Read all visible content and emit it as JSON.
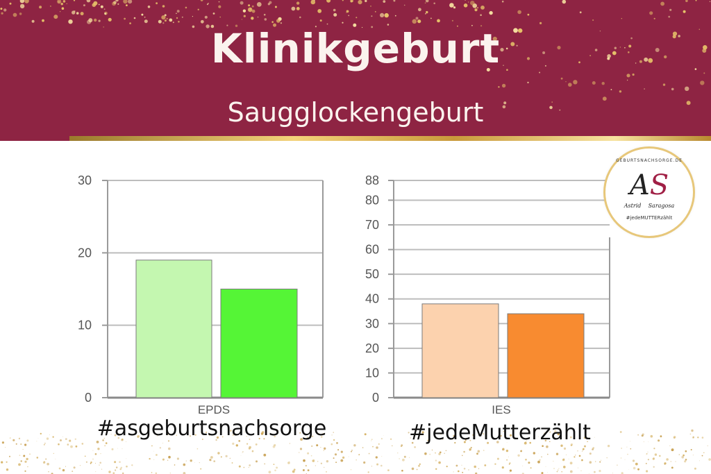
{
  "header": {
    "title": "Klinikgeburt",
    "subtitle": "Saugglockengeburt",
    "bg_color": "#8e2443"
  },
  "hashtags": {
    "left": "#asgeburtsnachsorge",
    "right": "#jedeMutterzählt"
  },
  "logo": {
    "top_text": "GEBURTSNACHSORGE.DE",
    "monogram_a": "A",
    "monogram_s": "S",
    "name_left": "Astrid",
    "name_right": "Saragosa",
    "hashtag": "#jedeMUTTERzählt",
    "icon": "logo-icon"
  },
  "chart_data": [
    {
      "type": "bar",
      "categories": [
        "EPDS"
      ],
      "series": [
        {
          "values": [
            19
          ],
          "color": "#c4f7b0"
        },
        {
          "values": [
            15
          ],
          "color": "#55f536"
        }
      ],
      "ylim": [
        0,
        30
      ],
      "yticks": [
        0,
        10,
        20,
        30
      ],
      "grid": true,
      "title": "",
      "xlabel": "",
      "ylabel": ""
    },
    {
      "type": "bar",
      "categories": [
        "IES"
      ],
      "series": [
        {
          "values": [
            38
          ],
          "color": "#fcd2ae"
        },
        {
          "values": [
            34
          ],
          "color": "#f88b30"
        }
      ],
      "ylim": [
        0,
        88
      ],
      "yticks": [
        0,
        10,
        20,
        30,
        40,
        50,
        60,
        70,
        80,
        88
      ],
      "grid": true,
      "title": "",
      "xlabel": "",
      "ylabel": ""
    }
  ]
}
